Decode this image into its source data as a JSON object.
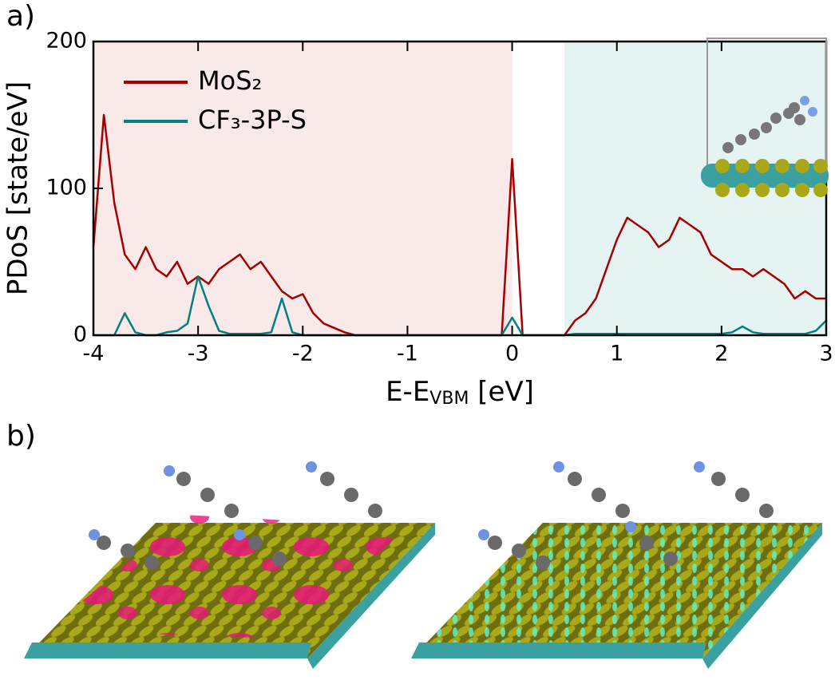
{
  "panels": [
    "a)",
    "b)"
  ],
  "chart_data": {
    "type": "line",
    "ylabel": "PDoS [state/eV]",
    "xlabel": [
      "E-E",
      "VBM",
      " [eV]"
    ],
    "xlim": [
      -4,
      3
    ],
    "xticks": [
      -4,
      -3,
      -2,
      -1,
      0,
      1,
      2,
      3
    ],
    "ylim": [
      0,
      200
    ],
    "yticks": [
      0,
      100,
      200
    ],
    "legend": "upper left",
    "shaded_regions": [
      {
        "from": -4,
        "to": 0,
        "color": "#f9e9e9"
      },
      {
        "from": 0.5,
        "to": 3,
        "color": "#e5f3f3"
      }
    ],
    "x": [
      -4.0,
      -3.9,
      -3.8,
      -3.7,
      -3.6,
      -3.5,
      -3.4,
      -3.3,
      -3.2,
      -3.1,
      -3.0,
      -2.9,
      -2.8,
      -2.7,
      -2.6,
      -2.5,
      -2.4,
      -2.3,
      -2.2,
      -2.1,
      -2.0,
      -1.9,
      -1.8,
      -1.7,
      -1.6,
      -1.5,
      -1.4,
      -1.3,
      -1.2,
      -1.1,
      -1.0,
      -0.9,
      -0.8,
      -0.7,
      -0.6,
      -0.5,
      -0.4,
      -0.3,
      -0.2,
      -0.1,
      0.0,
      0.1,
      0.2,
      0.3,
      0.4,
      0.5,
      0.6,
      0.7,
      0.8,
      0.9,
      1.0,
      1.1,
      1.2,
      1.3,
      1.4,
      1.5,
      1.6,
      1.7,
      1.8,
      1.9,
      2.0,
      2.1,
      2.2,
      2.3,
      2.4,
      2.5,
      2.6,
      2.7,
      2.8,
      2.9,
      3.0
    ],
    "series": [
      {
        "name": "MoS₂",
        "color": "#a50000",
        "values": [
          60,
          150,
          90,
          55,
          45,
          60,
          45,
          40,
          50,
          35,
          40,
          35,
          45,
          50,
          55,
          45,
          50,
          40,
          30,
          25,
          28,
          15,
          8,
          5,
          2,
          0,
          0,
          0,
          0,
          0,
          0,
          0,
          0,
          0,
          0,
          0,
          0,
          0,
          0,
          0,
          120,
          0,
          0,
          0,
          0,
          0,
          10,
          15,
          25,
          45,
          65,
          80,
          75,
          70,
          60,
          65,
          80,
          75,
          70,
          55,
          50,
          45,
          45,
          40,
          45,
          40,
          35,
          25,
          30,
          25,
          25
        ]
      },
      {
        "name": "CF₃-3P-S",
        "color": "#008080",
        "values": [
          0,
          0,
          0,
          15,
          2,
          0,
          0,
          2,
          3,
          8,
          40,
          20,
          3,
          1,
          1,
          1,
          1,
          2,
          25,
          2,
          0,
          0,
          0,
          0,
          0,
          0,
          0,
          0,
          0,
          0,
          0,
          0,
          0,
          0,
          0,
          0,
          0,
          0,
          0,
          0,
          12,
          0,
          0,
          0,
          0,
          0,
          1,
          1,
          1,
          1,
          1,
          1,
          1,
          1,
          1,
          1,
          1,
          1,
          1,
          1,
          1,
          2,
          6,
          2,
          1,
          1,
          1,
          1,
          1,
          3,
          10
        ]
      }
    ]
  }
}
